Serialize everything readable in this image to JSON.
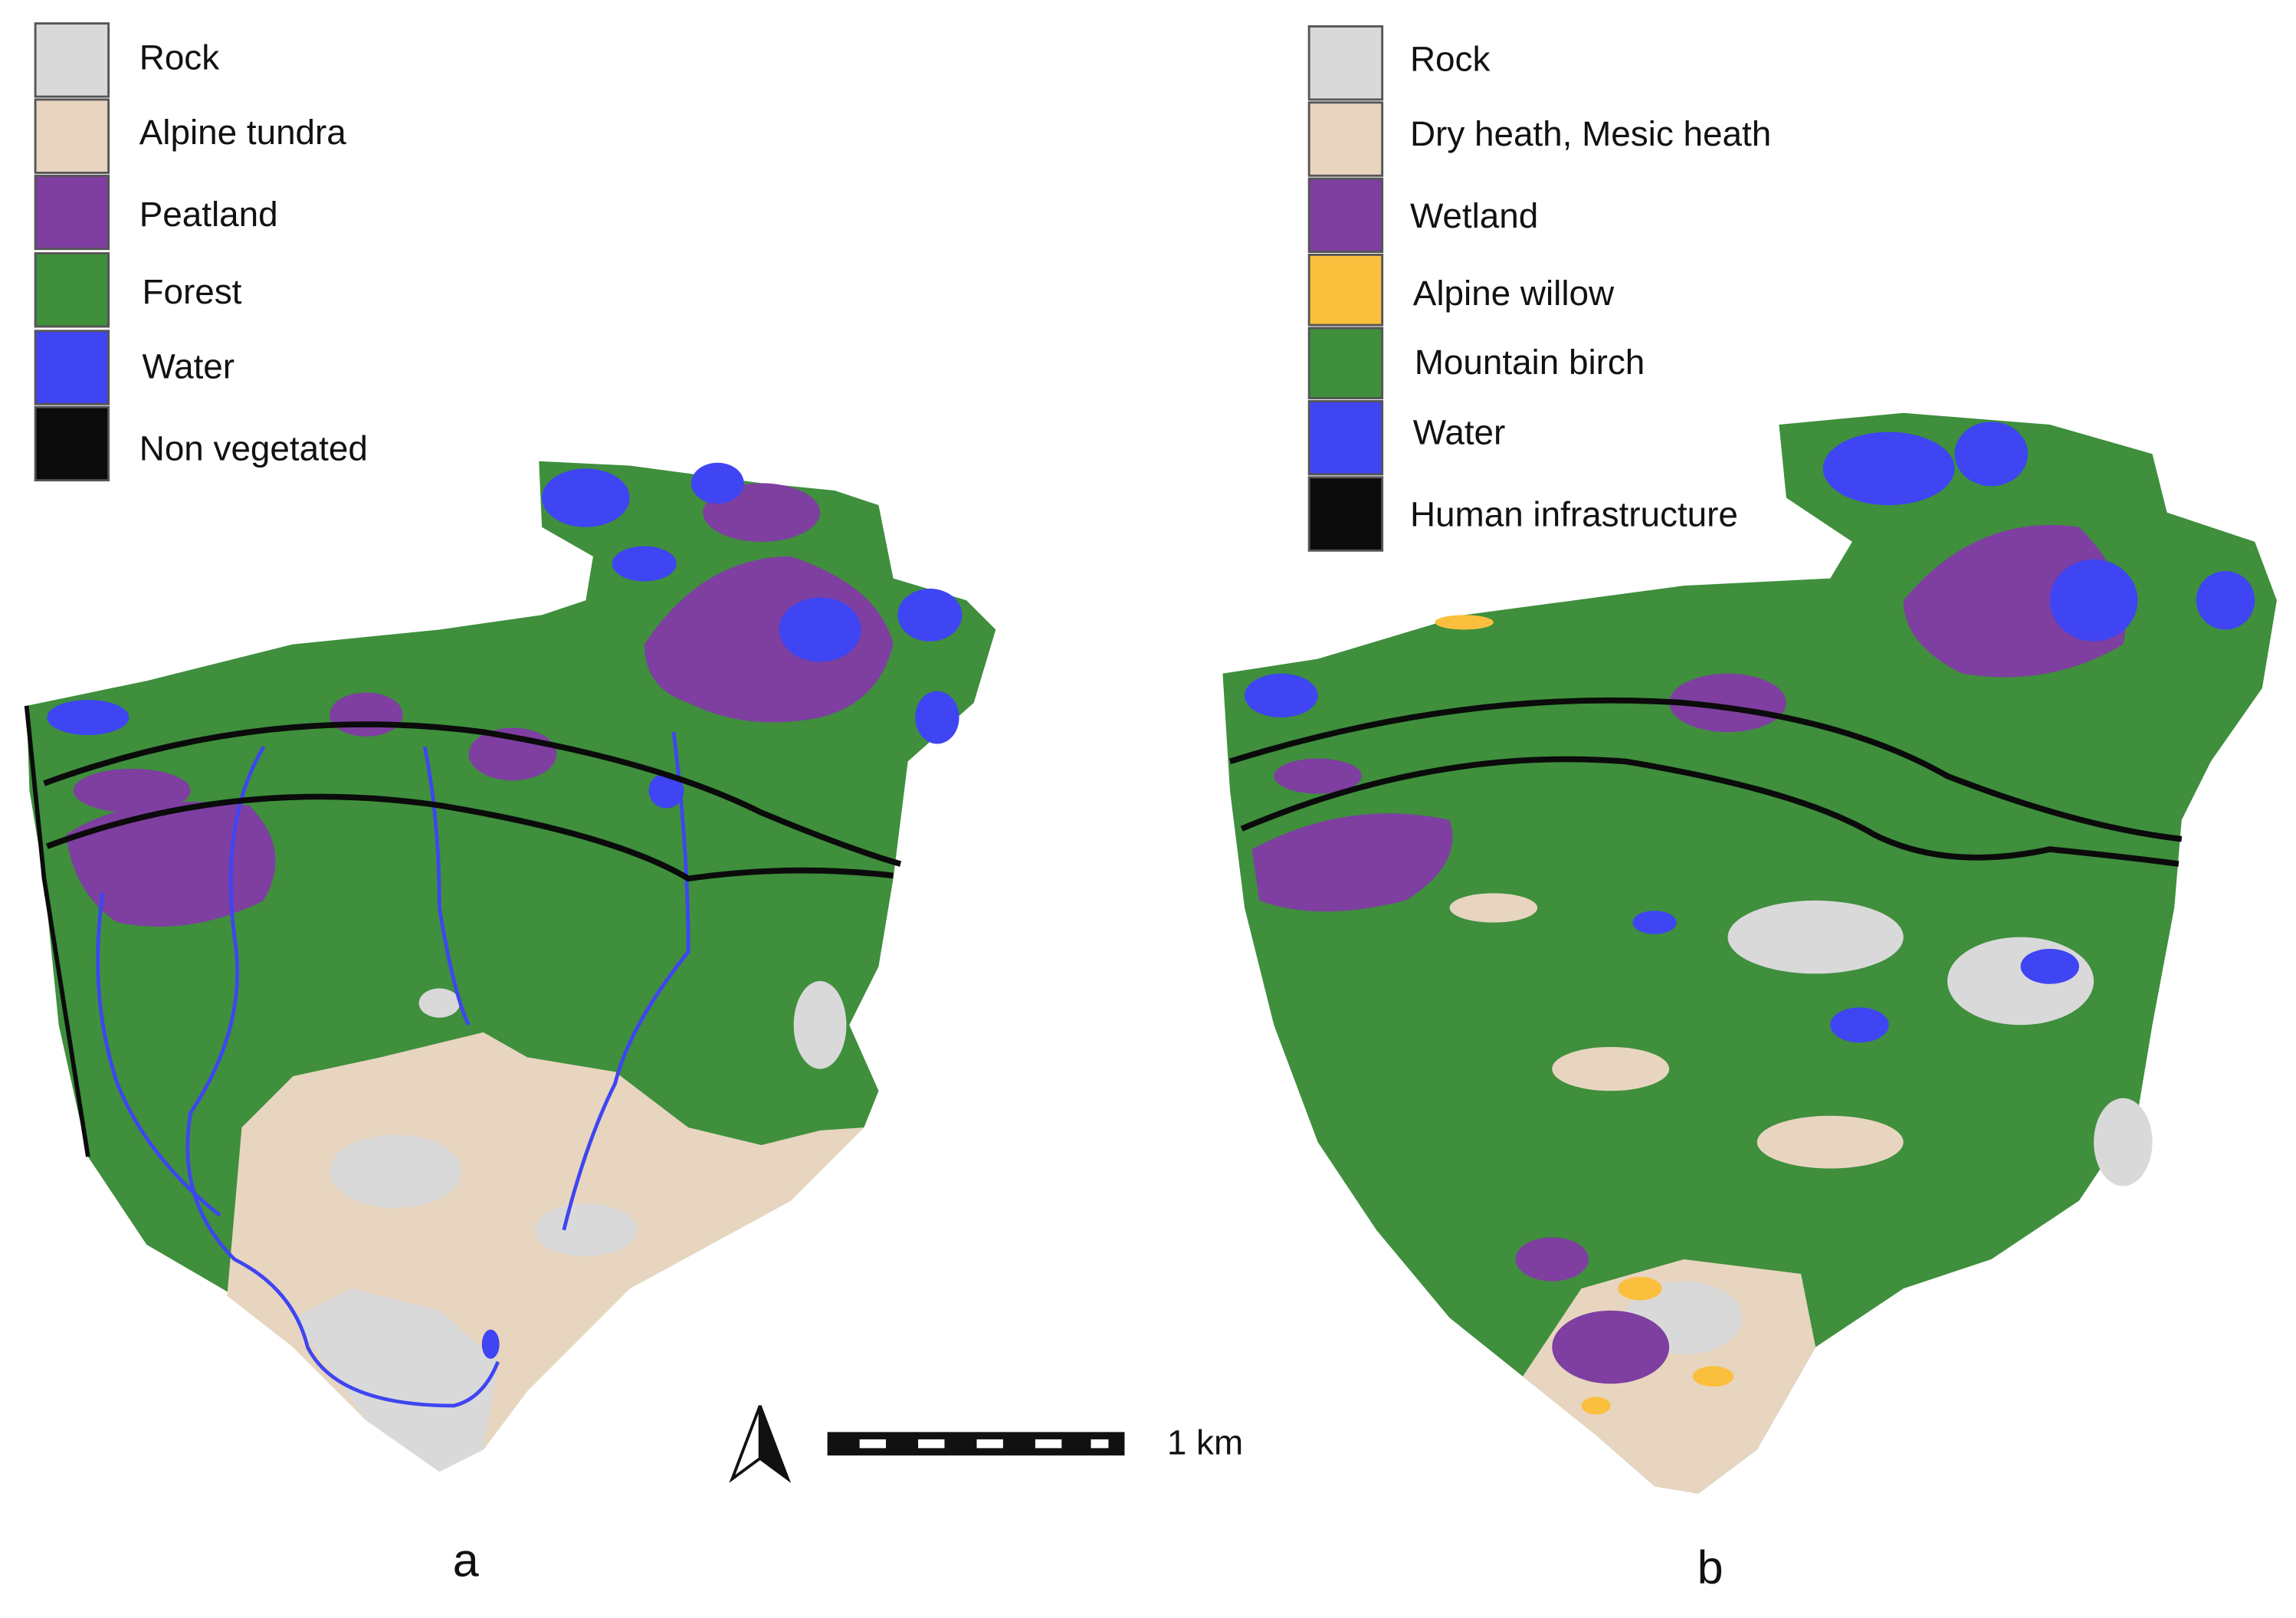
{
  "panel_a": {
    "legend": [
      "Rock",
      "Alpine tundra",
      "Peatland",
      "Forest",
      "Water",
      "Non vegetated"
    ],
    "label": "a"
  },
  "panel_b": {
    "legend": [
      "Rock",
      "Dry heath, Mesic heath",
      "Wetland",
      "Alpine willow",
      "Mountain birch",
      "Water",
      "Human infrastructure"
    ],
    "label": "b"
  },
  "scale_bar": {
    "label": "1 km"
  }
}
